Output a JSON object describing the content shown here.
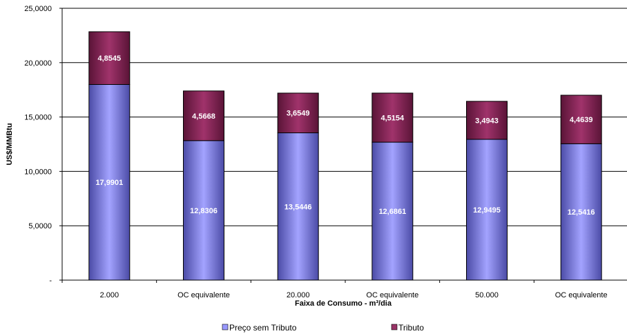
{
  "chart_data": {
    "type": "bar",
    "stacked": true,
    "title": "",
    "xlabel": "Faixa de Consumo - m³/dia",
    "ylabel": "US$/MMBtu",
    "ylim": [
      0,
      25
    ],
    "yticks": [
      0,
      5,
      10,
      15,
      20,
      25
    ],
    "ytick_labels": [
      "-",
      "5,0000",
      "10,0000",
      "15,0000",
      "20,0000",
      "25,0000"
    ],
    "grid": true,
    "legend_position": "bottom",
    "categories": [
      "2.000",
      "OC equivalente",
      "20.000",
      "OC equivalente",
      "50.000",
      "OC equivalente"
    ],
    "series": [
      {
        "name": "Preço sem Tributo",
        "color": "#9999ff",
        "values": [
          17.9901,
          12.8306,
          13.5446,
          12.6861,
          12.9495,
          12.5416
        ],
        "labels": [
          "17,9901",
          "12,8306",
          "13,5446",
          "12,6861",
          "12,9495",
          "12,5416"
        ]
      },
      {
        "name": "Tributo",
        "color": "#993366",
        "values": [
          4.8545,
          4.5668,
          3.6549,
          4.5154,
          3.4943,
          4.4639
        ],
        "labels": [
          "4,8545",
          "4,5668",
          "3,6549",
          "4,5154",
          "3,4943",
          "4,4639"
        ]
      }
    ]
  }
}
